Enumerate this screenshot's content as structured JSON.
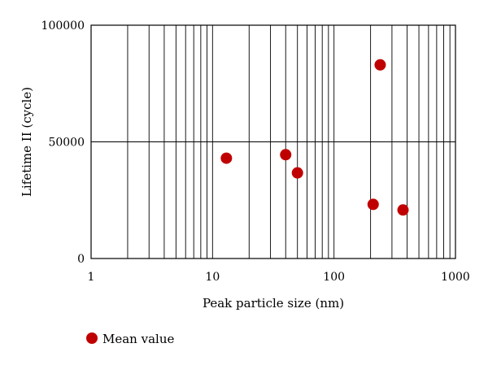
{
  "chart_data": {
    "type": "scatter",
    "xlabel": "Peak particle size (nm)",
    "ylabel": "Lifetime II (cycle)",
    "xscale": "log",
    "xlim": [
      1,
      1000
    ],
    "ylim": [
      0,
      100000
    ],
    "x_ticks": [
      1,
      10,
      100,
      1000
    ],
    "x_tick_labels": [
      "1",
      "10",
      "100",
      "1000"
    ],
    "y_ticks": [
      0,
      50000,
      100000
    ],
    "y_tick_labels": [
      "0",
      "50000",
      "100000"
    ],
    "grid": true,
    "legend_position": "bottom-left",
    "series": [
      {
        "name": "Mean value",
        "color": "#c00000",
        "points": [
          {
            "x": 13,
            "y": 43000
          },
          {
            "x": 40,
            "y": 44500
          },
          {
            "x": 50,
            "y": 36700
          },
          {
            "x": 210,
            "y": 23200
          },
          {
            "x": 240,
            "y": 83000
          },
          {
            "x": 370,
            "y": 20800
          }
        ]
      }
    ]
  }
}
